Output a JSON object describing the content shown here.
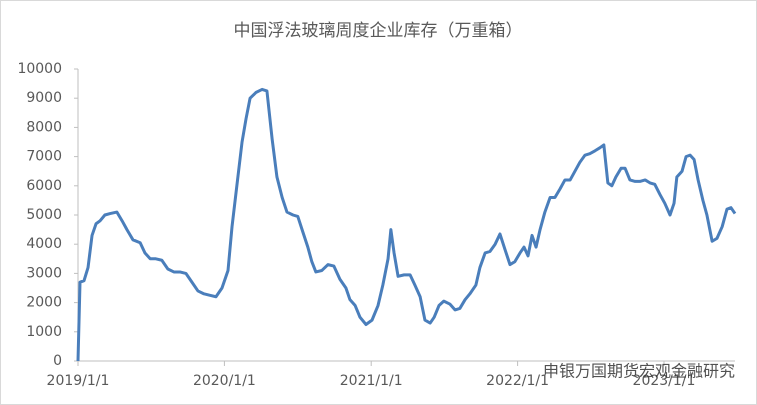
{
  "chart_data": {
    "type": "line",
    "title": "中国浮法玻璃周度企业库存（万重箱）",
    "watermark": "申银万国期货宏观金融研究",
    "color": "#4a7ebb",
    "x": [
      "2019/1/1",
      "2019/1/6",
      "2019/1/16",
      "2019/1/26",
      "2019/2/5",
      "2019/2/15",
      "2019/2/25",
      "2019/3/9",
      "2019/3/22",
      "2019/4/8",
      "2019/4/21",
      "2019/5/3",
      "2019/5/18",
      "2019/6/5",
      "2019/6/17",
      "2019/6/30",
      "2019/7/14",
      "2019/7/29",
      "2019/8/13",
      "2019/8/28",
      "2019/9/12",
      "2019/9/27",
      "2019/10/12",
      "2019/10/27",
      "2019/11/11",
      "2019/11/26",
      "2019/12/11",
      "2019/12/26",
      "2020/1/10",
      "2020/1/20",
      "2020/2/1",
      "2020/2/14",
      "2020/2/24",
      "2020/3/5",
      "2020/3/20",
      "2020/4/4",
      "2020/4/16",
      "2020/4/29",
      "2020/5/11",
      "2020/5/24",
      "2020/6/5",
      "2020/6/20",
      "2020/7/2",
      "2020/7/15",
      "2020/7/27",
      "2020/8/6",
      "2020/8/16",
      "2020/8/31",
      "2020/9/15",
      "2020/9/30",
      "2020/10/15",
      "2020/10/30",
      "2020/11/9",
      "2020/11/22",
      "2020/12/4",
      "2020/12/19",
      "2021/1/3",
      "2021/1/18",
      "2021/1/30",
      "2021/2/12",
      "2021/2/19",
      "2021/2/27",
      "2021/3/9",
      "2021/3/24",
      "2021/4/8",
      "2021/4/20",
      "2021/5/3",
      "2021/5/15",
      "2021/5/28",
      "2021/6/7",
      "2021/6/19",
      "2021/7/1",
      "2021/7/16",
      "2021/7/29",
      "2021/8/10",
      "2021/8/23",
      "2021/9/4",
      "2021/9/19",
      "2021/9/29",
      "2021/10/12",
      "2021/10/24",
      "2021/11/6",
      "2021/11/18",
      "2021/12/1",
      "2021/12/13",
      "2021/12/25",
      "2022/1/7",
      "2022/1/17",
      "2022/1/27",
      "2022/2/6",
      "2022/2/16",
      "2022/2/26",
      "2022/3/10",
      "2022/3/23",
      "2022/4/4",
      "2022/4/17",
      "2022/4/29",
      "2022/5/12",
      "2022/5/24",
      "2022/6/5",
      "2022/6/18",
      "2022/6/30",
      "2022/7/13",
      "2022/7/25",
      "2022/8/4",
      "2022/8/14",
      "2022/8/24",
      "2022/9/3",
      "2022/9/16",
      "2022/9/26",
      "2022/10/8",
      "2022/10/21",
      "2022/11/2",
      "2022/11/15",
      "2022/11/27",
      "2022/12/9",
      "2022/12/22",
      "2023/1/3",
      "2023/1/16",
      "2023/1/26",
      "2023/2/2",
      "2023/2/15",
      "2023/2/25",
      "2023/3/7",
      "2023/3/17",
      "2023/3/27",
      "2023/4/8",
      "2023/4/18",
      "2023/5/1",
      "2023/5/13",
      "2023/5/26",
      "2023/6/7",
      "2023/6/17",
      "2023/6/27"
    ],
    "values": [
      0,
      2700,
      2750,
      3200,
      4300,
      4700,
      4800,
      5000,
      5050,
      5100,
      4800,
      4500,
      4150,
      4050,
      3700,
      3500,
      3500,
      3450,
      3150,
      3050,
      3050,
      3000,
      2700,
      2400,
      2300,
      2250,
      2200,
      2500,
      3100,
      4600,
      6000,
      7500,
      8300,
      9000,
      9200,
      9300,
      9250,
      7600,
      6300,
      5600,
      5100,
      5000,
      4950,
      4400,
      3900,
      3400,
      3050,
      3100,
      3300,
      3250,
      2800,
      2500,
      2100,
      1900,
      1500,
      1250,
      1400,
      1900,
      2600,
      3500,
      4500,
      3700,
      2900,
      2950,
      2950,
      2600,
      2200,
      1400,
      1300,
      1500,
      1900,
      2050,
      1950,
      1750,
      1800,
      2100,
      2300,
      2600,
      3200,
      3700,
      3750,
      4000,
      4350,
      3800,
      3300,
      3400,
      3700,
      3900,
      3600,
      4300,
      3900,
      4500,
      5100,
      5600,
      5600,
      5900,
      6200,
      6200,
      6500,
      6800,
      7050,
      7100,
      7200,
      7300,
      7400,
      6100,
      6000,
      6300,
      6600,
      6600,
      6200,
      6150,
      6150,
      6200,
      6100,
      6050,
      5700,
      5400,
      5000,
      5400,
      6300,
      6500,
      7000,
      7050,
      6900,
      6200,
      5500,
      5000,
      4100,
      4200,
      4600,
      5200,
      5250,
      5050
    ],
    "xlim": [
      "2019/1/1",
      "2023/6/27"
    ],
    "xticks": [
      "2019/1/1",
      "2020/1/1",
      "2021/1/1",
      "2022/1/1",
      "2023/1/1"
    ],
    "ylim": [
      0,
      10000
    ],
    "yticks": [
      0,
      1000,
      2000,
      3000,
      4000,
      5000,
      6000,
      7000,
      8000,
      9000,
      10000
    ],
    "grid": false
  }
}
